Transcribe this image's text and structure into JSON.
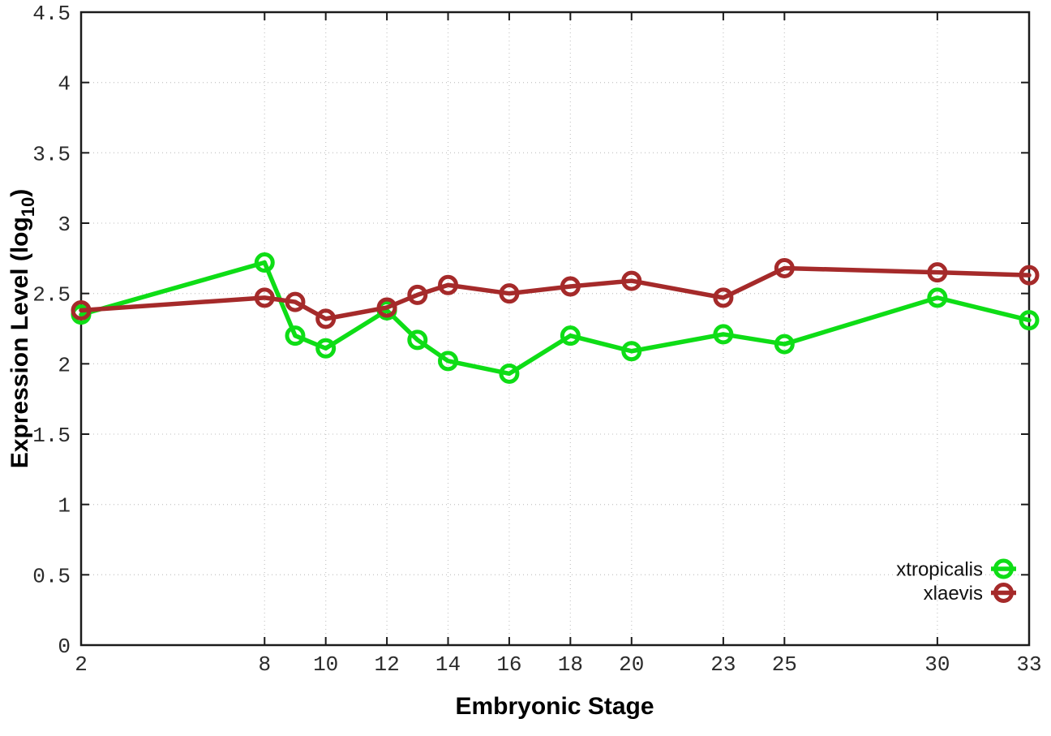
{
  "chart_data": {
    "type": "line",
    "title": "",
    "xlabel": "Embryonic Stage",
    "ylabel": "Expression Level (log10)",
    "ylabel_parts": {
      "main": "Expression Level (log",
      "sub": "10",
      "end": ")"
    },
    "xlim": [
      2,
      33
    ],
    "ylim": [
      0,
      4.5
    ],
    "grid": true,
    "legend_position": "inside-bottom-right",
    "x": [
      2,
      8,
      9,
      10,
      12,
      13,
      14,
      16,
      18,
      20,
      23,
      25,
      30,
      33
    ],
    "x_ticks": [
      {
        "value": 2,
        "label": "2"
      },
      {
        "value": 8,
        "label": "8"
      },
      {
        "value": 10,
        "label": "10"
      },
      {
        "value": 12,
        "label": "12"
      },
      {
        "value": 14,
        "label": "14"
      },
      {
        "value": 16,
        "label": "16"
      },
      {
        "value": 18,
        "label": "18"
      },
      {
        "value": 20,
        "label": "20"
      },
      {
        "value": 23,
        "label": "23"
      },
      {
        "value": 25,
        "label": "25"
      },
      {
        "value": 30,
        "label": "30"
      },
      {
        "value": 33,
        "label": "33"
      }
    ],
    "y_ticks": [
      {
        "value": 0,
        "label": "0"
      },
      {
        "value": 0.5,
        "label": "0.5"
      },
      {
        "value": 1,
        "label": "1"
      },
      {
        "value": 1.5,
        "label": "1.5"
      },
      {
        "value": 2,
        "label": "2"
      },
      {
        "value": 2.5,
        "label": "2.5"
      },
      {
        "value": 3,
        "label": "3"
      },
      {
        "value": 3.5,
        "label": "3.5"
      },
      {
        "value": 4,
        "label": "4"
      },
      {
        "value": 4.5,
        "label": "4.5"
      }
    ],
    "series": [
      {
        "name": "xtropicalis",
        "color": "#0edd16",
        "marker": "open-circle",
        "values": [
          2.35,
          2.72,
          2.2,
          2.11,
          2.38,
          2.17,
          2.02,
          1.93,
          2.2,
          2.09,
          2.21,
          2.14,
          2.47,
          2.31
        ]
      },
      {
        "name": "xlaevis",
        "color": "#a52a2a",
        "marker": "open-circle",
        "values": [
          2.38,
          2.47,
          2.44,
          2.32,
          2.4,
          2.49,
          2.56,
          2.5,
          2.55,
          2.59,
          2.47,
          2.68,
          2.65,
          2.63
        ]
      }
    ]
  },
  "styles": {
    "background": "#ffffff",
    "grid_color": "#c9c9c9",
    "axis_color": "#1b1b1b",
    "tick_label_color": "#2b2b2b"
  }
}
